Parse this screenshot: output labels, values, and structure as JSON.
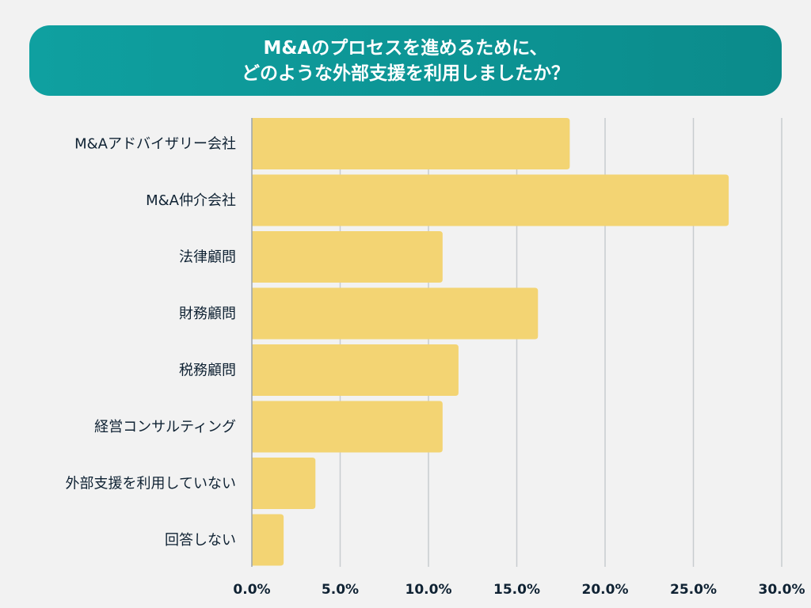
{
  "chart_data": {
    "type": "bar",
    "orientation": "horizontal",
    "title": [
      "M&Aのプロセスを進めるために、",
      "どのような外部支援を利用しましたか？"
    ],
    "categories": [
      "M&Aアドバイザリー会社",
      "M&A仲介会社",
      "法律顧問",
      "財務顧問",
      "税務顧問",
      "経営コンサルティング",
      "外部支援を利用していない",
      "回答しない"
    ],
    "values": [
      18.0,
      27.0,
      10.8,
      16.2,
      11.7,
      10.8,
      3.6,
      1.8
    ],
    "xlim": [
      0,
      30
    ],
    "xticks": [
      "0.0%",
      "5.0%",
      "10.0%",
      "15.0%",
      "20.0%",
      "25.0%",
      "30.0%"
    ],
    "grid": true,
    "colors": {
      "bar": "#f3d473",
      "title_bg": "#0e9a9a",
      "grid": "#c8cccf",
      "text": "#0f2233"
    }
  }
}
